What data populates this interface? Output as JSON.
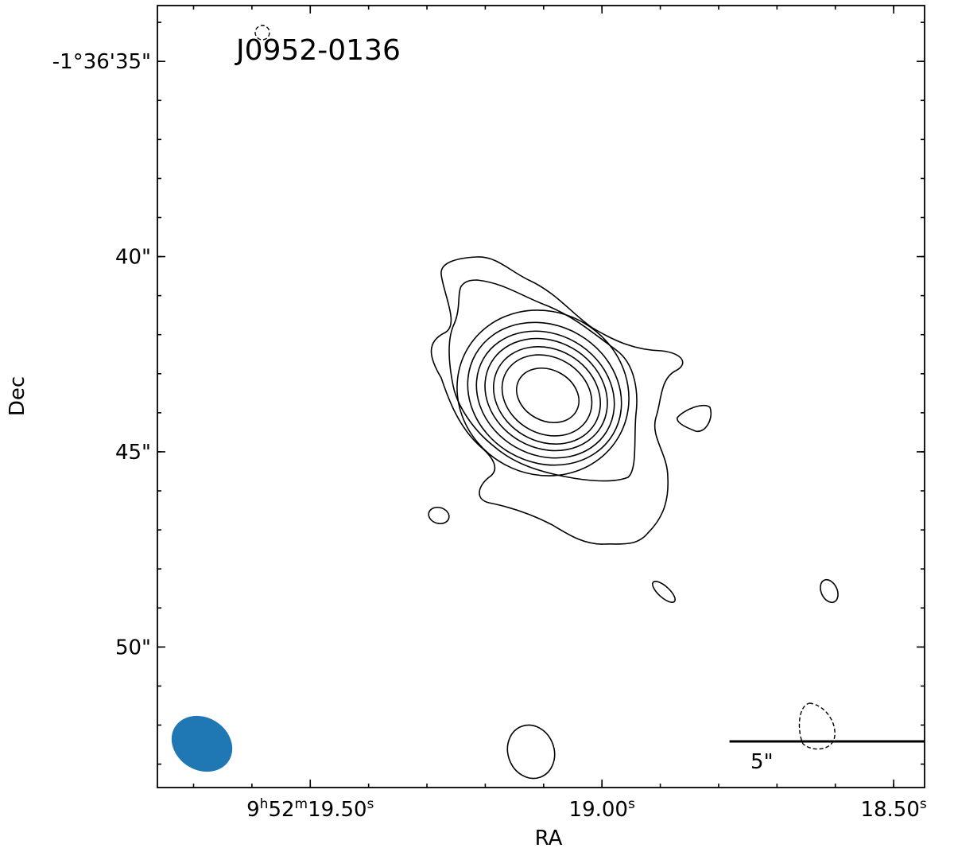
{
  "chart_data": {
    "type": "contour",
    "title": "J0952-0136",
    "x_label": "RA",
    "y_label": "Dec",
    "xlim": [
      19.762,
      18.447
    ],
    "ylim": [
      33.57,
      53.6
    ],
    "xticks": [
      {
        "value": 19.5,
        "label": "9h52m19.50s"
      },
      {
        "value": 19.0,
        "label": "19.00s"
      },
      {
        "value": 18.5,
        "label": "18.50s"
      }
    ],
    "yticks": [
      {
        "value": 35,
        "label": "-1°36'35\""
      },
      {
        "value": 40,
        "label": "40\""
      },
      {
        "value": 45,
        "label": "45\""
      },
      {
        "value": 50,
        "label": "50\""
      }
    ],
    "scale_bar": {
      "value": 5,
      "label": "5\""
    }
  }
}
